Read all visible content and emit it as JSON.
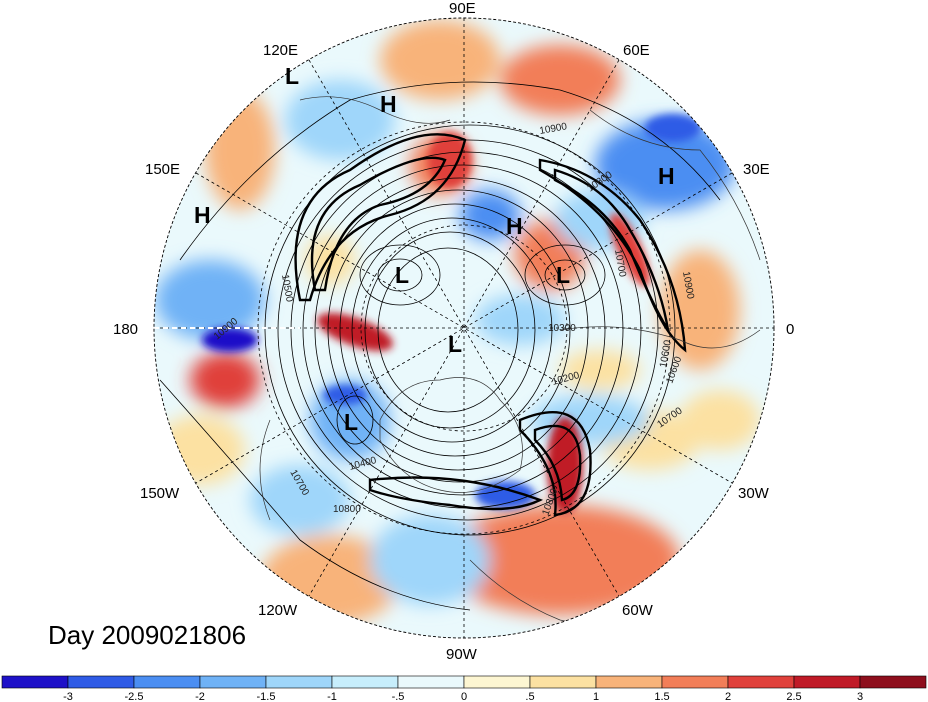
{
  "title": "Day 2009021806",
  "longitude_labels": [
    "90E",
    "60E",
    "30E",
    "0",
    "30W",
    "60W",
    "90W",
    "120W",
    "150W",
    "180",
    "150E",
    "120E"
  ],
  "pressure_systems": [
    {
      "type": "H",
      "lon": 100
    },
    {
      "type": "L",
      "lon": 120
    },
    {
      "type": "H",
      "lon": 40
    },
    {
      "type": "H",
      "lon": 150
    },
    {
      "type": "H",
      "lon": 80
    },
    {
      "type": "L",
      "lon": 45
    },
    {
      "type": "L",
      "lon": 120
    },
    {
      "type": "L",
      "lon": -100
    },
    {
      "type": "L",
      "lon": -140
    }
  ],
  "contour_labels": [
    "10900",
    "10800",
    "10700",
    "10600",
    "10300",
    "10200",
    "10400",
    "10800",
    "10700",
    "10900",
    "10800",
    "10500",
    "10700",
    "10600",
    "10900"
  ],
  "colorbar": {
    "ticks": [
      "-3",
      "-2.5",
      "-2",
      "-1.5",
      "-1",
      "-.5",
      "0",
      ".5",
      "1",
      "1.5",
      "2",
      "2.5",
      "3"
    ],
    "colors": [
      "#1e11c8",
      "#2f5be6",
      "#4b8ef2",
      "#6fb2f6",
      "#9fd6fa",
      "#c7eefc",
      "#eaf9fc",
      "#fdf6d2",
      "#fce1a2",
      "#f8b37a",
      "#f27e58",
      "#e0413b",
      "#c01a27",
      "#8e0f1d"
    ]
  }
}
